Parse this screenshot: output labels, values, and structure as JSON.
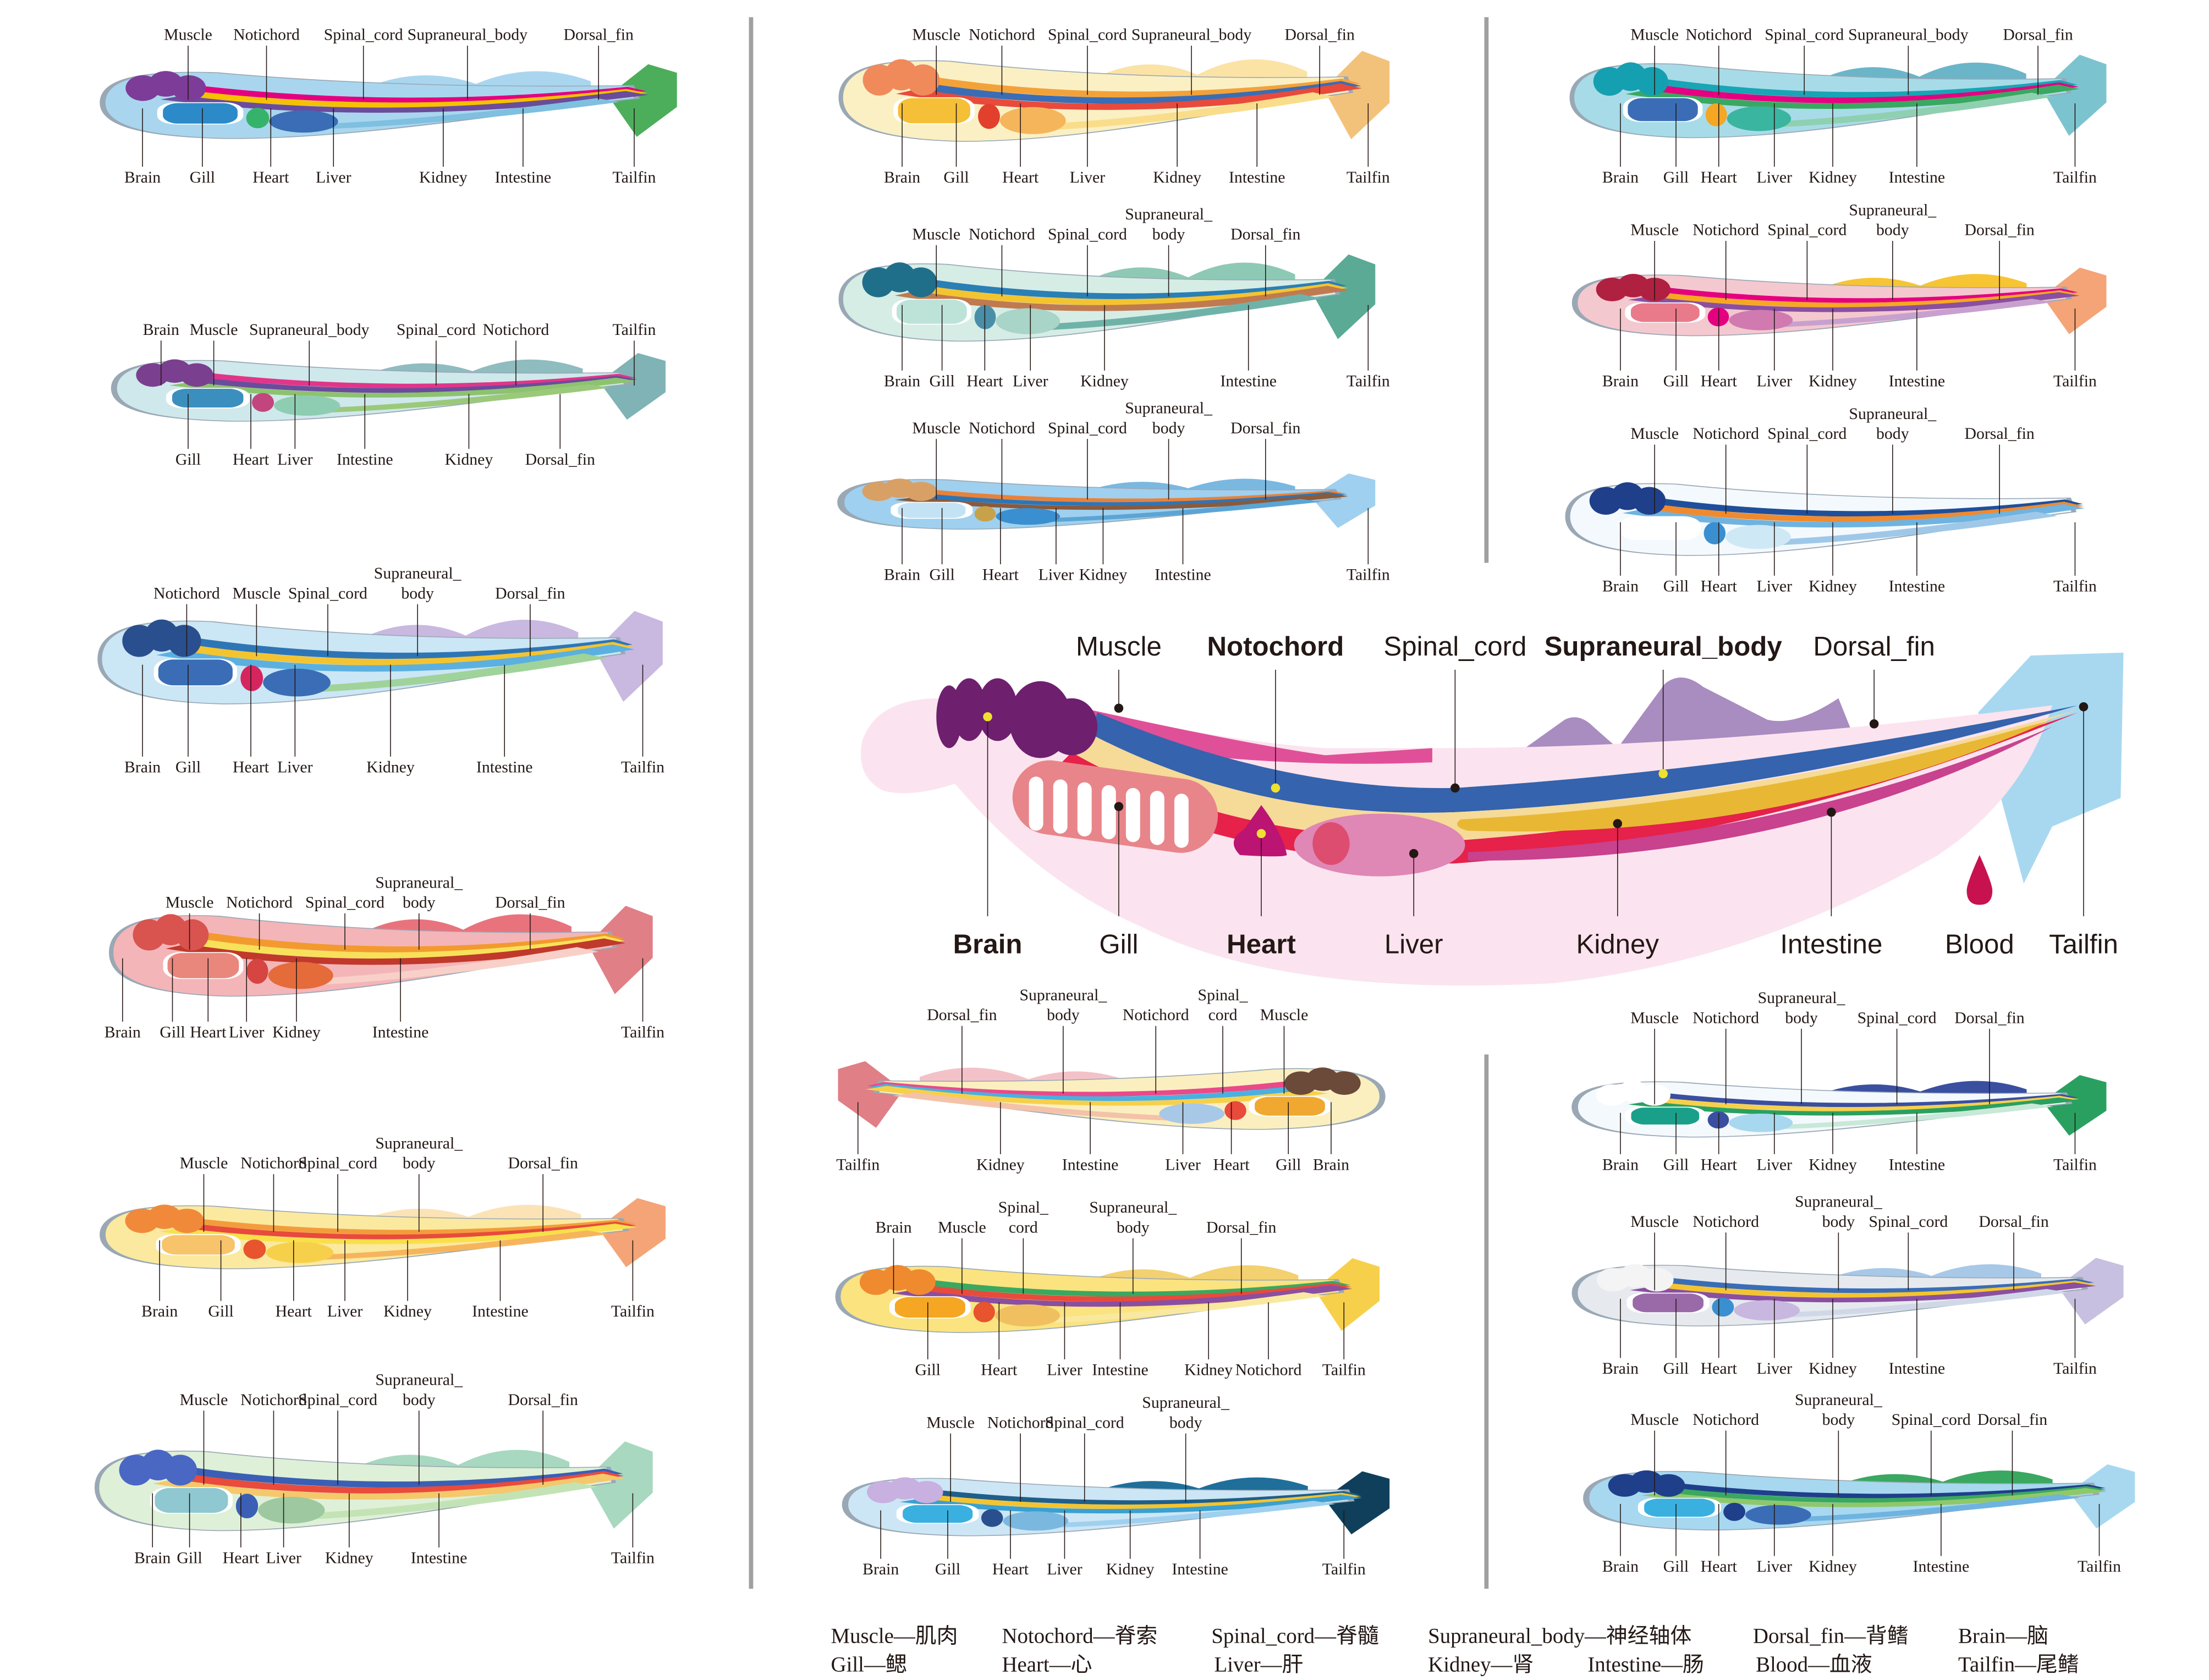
{
  "panels": [
    {
      "id": "L1",
      "top": [
        "Muscle",
        "Notichord",
        "Spinal_cord",
        "Supraneural_body",
        "Dorsal_fin"
      ],
      "bottom": [
        "Brain",
        "Gill",
        "Heart",
        "Liver",
        "Kidney",
        "Intestine",
        "Tailfin"
      ],
      "colors": {
        "body": "#a9d6ee",
        "tail": "#4cae5b",
        "dorsal": "#a9d6ee",
        "s1": "#e4007f",
        "s2": "#f6c100",
        "s3": "#6b4c9a",
        "brain": "#7d3c98",
        "gill": "#2c8ac9",
        "heart": "#36b36b",
        "liver": "#3a6db5",
        "gut": "#7fbfe0"
      }
    },
    {
      "id": "L2",
      "top": [
        "Brain",
        "Muscle",
        "Supraneural_body",
        "Spinal_cord",
        "Notichord",
        "Tailfin"
      ],
      "bottom": [
        "Gill",
        "Heart",
        "Liver",
        "Intestine",
        "Kidney",
        "Dorsal_fin"
      ],
      "colors": {
        "body": "#cfe8ec",
        "tail": "#7fb3b5",
        "dorsal": "#8fbcbf",
        "s1": "#e0368a",
        "s2": "#6a4c9c",
        "s3": "#8dc26f",
        "brain": "#7b3f8f",
        "gill": "#3b8fbf",
        "heart": "#c3457e",
        "liver": "#8fcdb2",
        "gut": "#9bc97a"
      }
    },
    {
      "id": "L3",
      "top": [
        "Notichord",
        "Muscle",
        "Spinal_cord",
        [
          "Supraneural_",
          "body"
        ],
        "Dorsal_fin"
      ],
      "bottom": [
        "Brain",
        "Gill",
        "Heart",
        "Liver",
        "Kidney",
        "Intestine",
        "Tailfin"
      ],
      "colors": {
        "body": "#cbe6f5",
        "tail": "#c9b8e0",
        "dorsal": "#c9b8e0",
        "s1": "#2e75b6",
        "s2": "#f4c430",
        "s3": "#5bb0e0",
        "brain": "#2a4f8f",
        "gill": "#3a6db5",
        "heart": "#d6245f",
        "liver": "#3a6db5",
        "gut": "#9fd39a"
      }
    },
    {
      "id": "L4",
      "top": [
        "Muscle",
        "Notichord",
        "Spinal_cord",
        [
          "Supraneural_",
          "body"
        ],
        "Dorsal_fin"
      ],
      "bottom": [
        "Brain",
        "Gill",
        "Heart",
        "Liver",
        "Kidney",
        "Intestine",
        "Tailfin"
      ],
      "colors": {
        "body": "#f4b5b8",
        "tail": "#e07f86",
        "dorsal": "#e8737d",
        "s1": "#f29a2e",
        "s2": "#f7e15a",
        "s3": "#c0392b",
        "brain": "#d9534f",
        "gill": "#e9877d",
        "heart": "#d64541",
        "liver": "#e56b3a",
        "gut": "#f8d0c8"
      }
    },
    {
      "id": "L5",
      "top": [
        "Muscle",
        "Notichord",
        "Spinal_cord",
        [
          "Supraneural_",
          "body"
        ],
        "Dorsal_fin"
      ],
      "bottom": [
        "Brain",
        "Gill",
        "Heart",
        "Liver",
        "Kidney",
        "Intestine",
        "Tailfin"
      ],
      "colors": {
        "body": "#fbe9a0",
        "tail": "#f4a477",
        "dorsal": "#fbe3b6",
        "s1": "#f39c3c",
        "s2": "#e84a3c",
        "s3": "#f9e04b",
        "brain": "#f08a3a",
        "gill": "#f7c36b",
        "heart": "#e8542e",
        "liver": "#f7d04b",
        "gut": "#f6b55c"
      }
    },
    {
      "id": "L6",
      "top": [
        "Muscle",
        "Notichord",
        "Spinal_cord",
        [
          "Supraneural_",
          "body"
        ],
        "Dorsal_fin"
      ],
      "bottom": [
        "Brain",
        "Gill",
        "Heart",
        "Liver",
        "Kidney",
        "Intestine",
        "Tailfin"
      ],
      "colors": {
        "body": "#dff0d8",
        "tail": "#a8d8c0",
        "dorsal": "#a8d8c0",
        "s1": "#3a5fb5",
        "s2": "#e94b3c",
        "s3": "#f4c86b",
        "brain": "#4a67c4",
        "gill": "#8fc8d0",
        "heart": "#3a5fb5",
        "liver": "#9ec8a0",
        "gut": "#c3e3b5"
      }
    },
    {
      "id": "M1",
      "top": [
        "Muscle",
        "Notichord",
        "Spinal_cord",
        "Supraneural_body",
        "Dorsal_fin"
      ],
      "bottom": [
        "Brain",
        "Gill",
        "Heart",
        "Liver",
        "Kidney",
        "Intestine",
        "Tailfin"
      ],
      "colors": {
        "body": "#fbf0c4",
        "tail": "#f3c27a",
        "dorsal": "#fbe3a6",
        "s1": "#f3a23a",
        "s2": "#3a6db5",
        "s3": "#e84a3c",
        "brain": "#f08a5a",
        "gill": "#f5c037",
        "heart": "#e2402c",
        "liver": "#f5b55a",
        "gut": "#f9dd8a"
      }
    },
    {
      "id": "M2",
      "top": [
        "Muscle",
        "Notichord",
        "Spinal_cord",
        [
          "Supraneural_",
          "body"
        ],
        "Dorsal_fin"
      ],
      "bottom": [
        "Brain",
        "Gill",
        "Heart",
        "Liver",
        "Kidney",
        "Intestine",
        "Tailfin"
      ],
      "colors": {
        "body": "#d6ede6",
        "tail": "#5aaa95",
        "dorsal": "#8ec9b5",
        "s1": "#2a7fb5",
        "s2": "#f4c430",
        "s3": "#c07a50",
        "brain": "#1f6f8b",
        "gill": "#bde3d9",
        "heart": "#4a8fa8",
        "liver": "#a9d4c8",
        "gut": "#6fb3a8"
      }
    },
    {
      "id": "M3",
      "top": [
        "Muscle",
        "Notichord",
        "Spinal_cord",
        [
          "Supraneural_",
          "body"
        ],
        "Dorsal_fin"
      ],
      "bottom": [
        "Brain",
        "Gill",
        "Heart",
        "Liver",
        "Kidney",
        "Intestine",
        "Tailfin"
      ],
      "colors": {
        "body": "#9fd0ef",
        "tail": "#9fd0ef",
        "dorsal": "#7ab8e0",
        "s1": "#e8823a",
        "s2": "#2e75b6",
        "s3": "#8a5a3c",
        "brain": "#d9a066",
        "gill": "#c3e3f5",
        "heart": "#c8a24a",
        "liver": "#3a8fd0",
        "gut": "#5aa5d5"
      }
    },
    {
      "id": "R1",
      "top": [
        "Muscle",
        "Notichord",
        "Spinal_cord",
        "Supraneural_body",
        "Dorsal_fin"
      ],
      "bottom": [
        "Brain",
        "Gill",
        "Heart",
        "Liver",
        "Kidney",
        "Intestine",
        "Tailfin"
      ],
      "colors": {
        "body": "#a8dbe8",
        "tail": "#7cc3d0",
        "dorsal": "#6bb5c8",
        "s1": "#18a5b5",
        "s2": "#e4007f",
        "s3": "#3aa860",
        "brain": "#14a0b0",
        "gill": "#3a6db5",
        "heart": "#f5a623",
        "liver": "#3ab5a0",
        "gut": "#8fd0b0"
      }
    },
    {
      "id": "R2",
      "top": [
        "Muscle",
        "Notichord",
        "Spinal_cord",
        [
          "Supraneural_",
          "body"
        ],
        "Dorsal_fin"
      ],
      "bottom": [
        "Brain",
        "Gill",
        "Heart",
        "Liver",
        "Kidney",
        "Intestine",
        "Tailfin"
      ],
      "colors": {
        "body": "#f4c8cf",
        "tail": "#f4a477",
        "dorsal": "#f7c433",
        "s1": "#e4007f",
        "s2": "#f7a823",
        "s3": "#8a4fa0",
        "brain": "#b02040",
        "gill": "#e97a8a",
        "heart": "#e4007f",
        "liver": "#d07ab0",
        "gut": "#c8a0d0"
      }
    },
    {
      "id": "R3",
      "top": [
        "Muscle",
        "Notichord",
        "Spinal_cord",
        [
          "Supraneural_",
          "body"
        ],
        "Dorsal_fin"
      ],
      "bottom": [
        "Brain",
        "Gill",
        "Heart",
        "Liver",
        "Kidney",
        "Intestine",
        "Tailfin"
      ],
      "colors": {
        "body": "#f4f9fd",
        "tail": "#ffffff",
        "dorsal": "#ffffff",
        "s1": "#1f4f9a",
        "s2": "#f08a2e",
        "s3": "#6fb3e0",
        "brain": "#1f3f8a",
        "gill": "#ffffff",
        "heart": "#3a8fd0",
        "liver": "#cfe8f5",
        "gut": "#9fc8e8"
      }
    },
    {
      "id": "B1",
      "flip": true,
      "top": [
        "Dorsal_fin",
        [
          "Supraneural_",
          "body"
        ],
        "Notichord",
        [
          "Spinal_",
          "cord"
        ],
        "Muscle"
      ],
      "bottom": [
        "Tailfin",
        "Kidney",
        "Intestine",
        "Liver",
        "Heart",
        "Gill",
        "Brain"
      ],
      "colors": {
        "body": "#fbefc0",
        "tail": "#e07f86",
        "dorsal": "#f3c2c8",
        "s1": "#e84a8a",
        "s2": "#4ab0e0",
        "s3": "#f7d04b",
        "brain": "#6b4a3a",
        "gill": "#f0a830",
        "heart": "#e84a3c",
        "liver": "#a8c8e8",
        "gut": "#f3c2a8"
      }
    },
    {
      "id": "B2",
      "top": [
        "Brain",
        "Muscle",
        [
          "Spinal_",
          "cord"
        ],
        [
          "Supraneural_",
          "body"
        ],
        "Dorsal_fin"
      ],
      "bottom": [
        "Gill",
        "Heart",
        "Liver",
        "Intestine",
        "Kidney",
        "Notichord",
        "Tailfin"
      ],
      "colors": {
        "body": "#fbe380",
        "tail": "#f7d04b",
        "dorsal": "#f3d070",
        "s1": "#3aa860",
        "s2": "#e84a3c",
        "s3": "#8a4fa0",
        "brain": "#f08a2e",
        "gill": "#f5a623",
        "heart": "#e8542e",
        "liver": "#f0c060",
        "gut": "#f9e9a0"
      }
    },
    {
      "id": "B3",
      "top": [
        "Muscle",
        "Notichord",
        "Spinal_cord",
        [
          "Supraneural_",
          "body"
        ]
      ],
      "bottom": [
        "Brain",
        "Gill",
        "Heart",
        "Liver",
        "Kidney",
        "Intestine",
        "Tailfin"
      ],
      "colors": {
        "body": "#cde6f5",
        "tail": "#0f3f5a",
        "dorsal": "#1f6f9a",
        "s1": "#1f5f8a",
        "s2": "#f4c430",
        "s3": "#3aa0d0",
        "brain": "#c8b0e0",
        "gill": "#3ab0e0",
        "heart": "#2a4f8f",
        "liver": "#7ab8e0",
        "gut": "#9fd0ef"
      }
    },
    {
      "id": "BR1",
      "top": [
        "Muscle",
        "Notichord",
        [
          "Supraneural_",
          "body"
        ],
        "Spinal_cord",
        "Dorsal_fin"
      ],
      "bottom": [
        "Brain",
        "Gill",
        "Heart",
        "Liver",
        "Kidney",
        "Intestine",
        "Tailfin"
      ],
      "colors": {
        "body": "#f4f9fd",
        "tail": "#2aa060",
        "dorsal": "#3a4fa0",
        "s1": "#3a4fa0",
        "s2": "#f7d04b",
        "s3": "#2aa060",
        "brain": "#ffffff",
        "gill": "#1aa08a",
        "heart": "#3a4fa0",
        "liver": "#a8d8f0",
        "gut": "#c8e8d8"
      }
    },
    {
      "id": "BR2",
      "top": [
        "Muscle",
        "Notichord",
        [
          "Supraneural_",
          "body"
        ],
        "Spinal_cord",
        "Dorsal_fin"
      ],
      "bottom": [
        "Brain",
        "Gill",
        "Heart",
        "Liver",
        "Kidney",
        "Intestine",
        "Tailfin"
      ],
      "colors": {
        "body": "#e6eaef",
        "tail": "#c8c0e0",
        "dorsal": "#a8c8e8",
        "s1": "#3a6db5",
        "s2": "#f4c430",
        "s3": "#8a4fa0",
        "brain": "#f4f4f4",
        "gill": "#9a6aa8",
        "heart": "#3a8fd0",
        "liver": "#c8b8e0",
        "gut": "#d0d8e8"
      }
    },
    {
      "id": "BR3",
      "top": [
        "Muscle",
        "Notichord",
        [
          "Supraneural_",
          "body"
        ],
        "Spinal_cord",
        "Dorsal_fin"
      ],
      "bottom": [
        "Brain",
        "Gill",
        "Heart",
        "Liver",
        "Kidney",
        "Intestine",
        "Tailfin"
      ],
      "colors": {
        "body": "#a8d8f0",
        "tail": "#a8d8f0",
        "dorsal": "#3aa860",
        "s1": "#1f3f8a",
        "s2": "#3aa860",
        "s3": "#8fc86a",
        "brain": "#1f3f8a",
        "gill": "#3ab0e0",
        "heart": "#1f3f8a",
        "liver": "#3a6db5",
        "gut": "#6fb3e0"
      }
    }
  ],
  "center": {
    "top": [
      {
        "text": "Muscle",
        "bold": false
      },
      {
        "text": "Notochord",
        "bold": true
      },
      {
        "text": "Spinal_cord",
        "bold": false
      },
      {
        "text": "Supraneural_body",
        "bold": true
      },
      {
        "text": "Dorsal_fin",
        "bold": false
      }
    ],
    "bottom": [
      {
        "text": "Brain",
        "bold": true
      },
      {
        "text": "Gill",
        "bold": false
      },
      {
        "text": "Heart",
        "bold": true
      },
      {
        "text": "Liver",
        "bold": false
      },
      {
        "text": "Kidney",
        "bold": false
      },
      {
        "text": "Intestine",
        "bold": false
      },
      {
        "text": "Blood",
        "bold": false
      },
      {
        "text": "Tailfin",
        "bold": false
      }
    ],
    "colors": {
      "body": "#fbe4ef",
      "tail": "#a8d8f0",
      "dorsal": "#a98cc0",
      "muscle": "#e05098",
      "spinal": "#3563ad",
      "notochord": "#f6da98",
      "red": "#e6214a",
      "kidney": "#e8b834",
      "intestine": "#c8428e",
      "brain": "#6e1f6e",
      "gill": "#e8858a",
      "heart": "#bb1473",
      "liver": "#df87b5",
      "blood": "#c8124f",
      "marker": "#f0e030"
    }
  },
  "legend": [
    [
      "Muscle—肌肉",
      "Notochord—脊索",
      "Spinal_cord—脊髓",
      "Supraneural_body—神经轴体",
      "Dorsal_fin—背鳍",
      "Brain—脑"
    ],
    [
      "Gill—鳃",
      "Heart—心",
      "Liver—肝",
      "Kidney—肾",
      "Intestine—肠",
      "Blood—血液",
      "Tailfin—尾鳍"
    ]
  ]
}
